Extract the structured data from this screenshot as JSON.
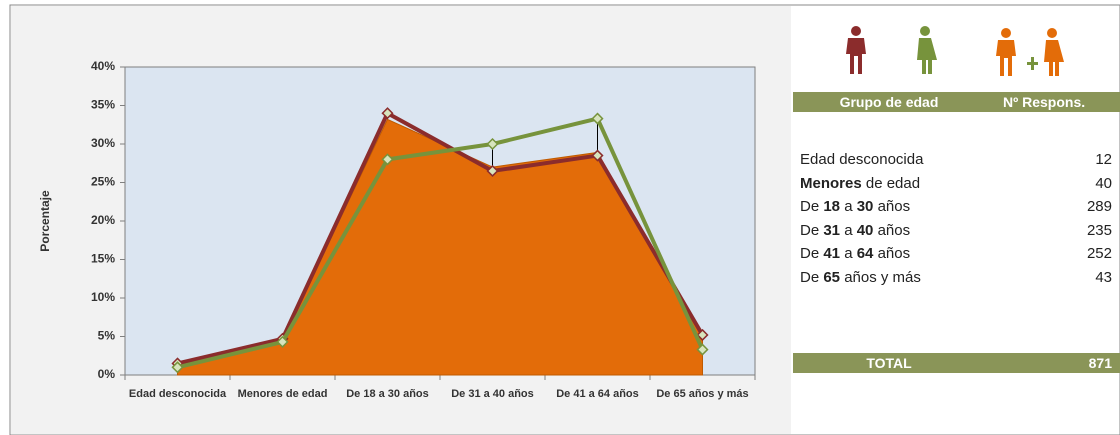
{
  "chart_data": {
    "type": "area",
    "y_label": "Porcentaje",
    "categories": [
      "Edad desconocida",
      "Menores de edad",
      "De 18 a 30 años",
      "De 31 a 40 años",
      "De 41 a 64 años",
      "De 65 años y más"
    ],
    "series": [
      {
        "type": "area",
        "color": "#e36c09",
        "values": [
          1.4,
          4.6,
          33.2,
          27.0,
          28.9,
          4.9
        ]
      },
      {
        "type": "line",
        "color": "#8b2c2c",
        "values": [
          1.5,
          4.7,
          34.0,
          26.5,
          28.5,
          5.2
        ]
      },
      {
        "type": "line",
        "color": "#77933c",
        "values": [
          1.0,
          4.3,
          28.0,
          30.0,
          33.3,
          3.3
        ]
      }
    ],
    "ylim": [
      0,
      40
    ],
    "yticks": [
      {
        "value": 0,
        "label": "0%"
      },
      {
        "value": 5,
        "label": "5%"
      },
      {
        "value": 10,
        "label": "10%"
      },
      {
        "value": 15,
        "label": "15%"
      },
      {
        "value": 20,
        "label": "20%"
      },
      {
        "value": 25,
        "label": "25%"
      },
      {
        "value": 30,
        "label": "30%"
      },
      {
        "value": 35,
        "label": "35%"
      },
      {
        "value": 40,
        "label": "40%"
      }
    ],
    "grid": false
  },
  "table": {
    "header": [
      "Grupo de edad",
      "Nº Respons."
    ],
    "rows": [
      {
        "label": [
          {
            "text": "Edad desconocida",
            "bold": false
          }
        ],
        "count": 12
      },
      {
        "label": [
          {
            "text": "Menores",
            "bold": true
          },
          {
            "text": " de edad",
            "bold": false
          }
        ],
        "count": 40
      },
      {
        "label": [
          {
            "text": "De ",
            "bold": false
          },
          {
            "text": "18",
            "bold": true
          },
          {
            "text": " a ",
            "bold": false
          },
          {
            "text": "30",
            "bold": true
          },
          {
            "text": " años",
            "bold": false
          }
        ],
        "count": 289
      },
      {
        "label": [
          {
            "text": "De ",
            "bold": false
          },
          {
            "text": "31",
            "bold": true
          },
          {
            "text": " a ",
            "bold": false
          },
          {
            "text": "40",
            "bold": true
          },
          {
            "text": " años",
            "bold": false
          }
        ],
        "count": 235
      },
      {
        "label": [
          {
            "text": "De ",
            "bold": false
          },
          {
            "text": "41",
            "bold": true
          },
          {
            "text": " a ",
            "bold": false
          },
          {
            "text": "64",
            "bold": true
          },
          {
            "text": " años",
            "bold": false
          }
        ],
        "count": 252
      },
      {
        "label": [
          {
            "text": "De ",
            "bold": false
          },
          {
            "text": "65",
            "bold": true
          },
          {
            "text": " años y más",
            "bold": false
          }
        ],
        "count": 43
      }
    ],
    "total": {
      "label": "TOTAL",
      "count": 871
    }
  }
}
